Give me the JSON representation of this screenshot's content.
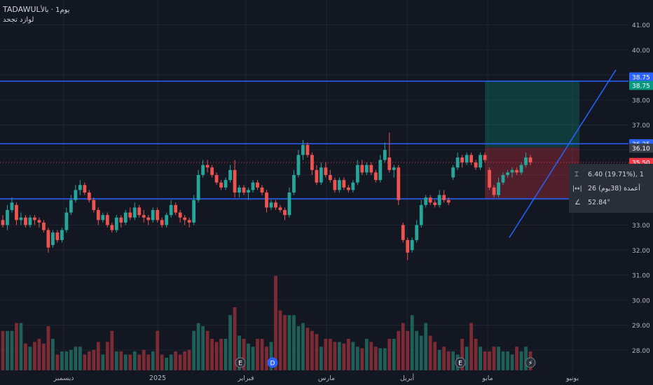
{
  "header": {
    "symbol": "TADAWUL",
    "title_ar": "يوم1 · بالأ",
    "subtitle": "لوازد تجحد"
  },
  "chart_data": {
    "type": "candlestick",
    "yaxis": {
      "range": [
        27.2,
        42.0
      ],
      "ticks": [
        "41.00",
        "40.00",
        "39.00",
        "38.00",
        "37.00",
        "36.00",
        "35.00",
        "34.00",
        "33.00",
        "32.00",
        "31.00",
        "30.00",
        "29.00",
        "28.00"
      ]
    },
    "xaxis_labels": [
      "ديسمبر",
      "2025",
      "فبراير",
      "مارس",
      "أبريل",
      "مايو",
      "يونيو"
    ],
    "lines": {
      "upper": 38.75,
      "middle": 36.25,
      "lower": 34.05
    },
    "price_tags": [
      {
        "value": 38.75,
        "label": "38.75",
        "color": "#2962ff"
      },
      {
        "value": 38.75,
        "label": "38.75",
        "color": "#089981"
      },
      {
        "value": 36.25,
        "label": "36.25",
        "color": "#2962ff"
      },
      {
        "value": 36.1,
        "label": "36.10",
        "color": "#3a3e48"
      },
      {
        "value": 35.5,
        "label": "35.50",
        "color": "#f23645"
      },
      {
        "value": 34.05,
        "label": "34.05",
        "color": "#2962ff"
      },
      {
        "value": 34.0,
        "label": "34.00",
        "color": "#f23645"
      }
    ],
    "last_price": 35.5,
    "position": {
      "entry": 36.1,
      "target": 38.75,
      "stop": 35.5
    },
    "trendline": {
      "from": 32.5,
      "to": 39.2
    },
    "measure": {
      "change": "6.40 (19.71%), 1",
      "bars": "26 أعمدة (38يوم)",
      "angle": "52.84°"
    },
    "markers": [
      "E",
      "D",
      "E",
      "⚡"
    ],
    "candles": [
      [
        33.2,
        33.4,
        32.9,
        33.0
      ],
      [
        33.0,
        33.8,
        32.8,
        33.6
      ],
      [
        33.6,
        34.1,
        33.5,
        33.9
      ],
      [
        33.8,
        33.9,
        33.0,
        33.2
      ],
      [
        33.2,
        33.5,
        33.0,
        33.3
      ],
      [
        33.3,
        33.4,
        32.9,
        33.0
      ],
      [
        33.0,
        33.4,
        32.9,
        33.3
      ],
      [
        33.3,
        33.4,
        33.0,
        33.2
      ],
      [
        33.2,
        33.3,
        32.9,
        33.1
      ],
      [
        33.1,
        33.2,
        32.7,
        32.8
      ],
      [
        32.8,
        32.9,
        31.9,
        32.1
      ],
      [
        32.2,
        32.8,
        32.1,
        32.7
      ],
      [
        32.7,
        32.8,
        32.3,
        32.4
      ],
      [
        32.4,
        32.9,
        32.3,
        32.8
      ],
      [
        32.8,
        33.7,
        32.7,
        33.5
      ],
      [
        33.5,
        34.2,
        33.4,
        34.0
      ],
      [
        34.0,
        34.6,
        33.9,
        34.4
      ],
      [
        34.4,
        34.8,
        34.2,
        34.6
      ],
      [
        34.6,
        34.7,
        34.2,
        34.3
      ],
      [
        34.3,
        34.4,
        33.9,
        34.0
      ],
      [
        34.0,
        34.1,
        33.5,
        33.6
      ],
      [
        33.6,
        33.7,
        33.0,
        33.2
      ],
      [
        33.2,
        33.5,
        33.1,
        33.4
      ],
      [
        33.4,
        33.5,
        32.9,
        33.0
      ],
      [
        33.0,
        33.1,
        32.7,
        32.8
      ],
      [
        32.8,
        33.4,
        32.7,
        33.3
      ],
      [
        33.3,
        33.4,
        32.9,
        33.1
      ],
      [
        33.1,
        33.6,
        33.0,
        33.5
      ],
      [
        33.5,
        33.7,
        33.2,
        33.3
      ],
      [
        33.3,
        33.9,
        33.2,
        33.7
      ],
      [
        33.7,
        33.8,
        33.3,
        33.4
      ],
      [
        33.4,
        33.6,
        33.1,
        33.3
      ],
      [
        33.3,
        33.4,
        33.0,
        33.2
      ],
      [
        33.2,
        33.7,
        33.1,
        33.6
      ],
      [
        33.6,
        33.7,
        33.1,
        33.2
      ],
      [
        33.2,
        33.3,
        32.9,
        33.0
      ],
      [
        33.0,
        33.5,
        32.9,
        33.4
      ],
      [
        33.4,
        34.0,
        33.3,
        33.8
      ],
      [
        33.8,
        33.9,
        33.4,
        33.5
      ],
      [
        33.5,
        33.6,
        33.1,
        33.3
      ],
      [
        33.3,
        33.4,
        33.0,
        33.2
      ],
      [
        33.2,
        33.3,
        32.9,
        33.1
      ],
      [
        33.1,
        34.2,
        33.0,
        34.0
      ],
      [
        34.0,
        35.2,
        33.9,
        35.0
      ],
      [
        35.0,
        35.6,
        34.9,
        35.4
      ],
      [
        35.4,
        35.6,
        35.1,
        35.3
      ],
      [
        35.3,
        35.4,
        34.9,
        35.0
      ],
      [
        35.0,
        35.1,
        34.6,
        34.7
      ],
      [
        34.7,
        34.8,
        34.4,
        34.5
      ],
      [
        34.5,
        34.9,
        34.4,
        34.8
      ],
      [
        34.8,
        35.4,
        34.7,
        35.2
      ],
      [
        35.2,
        35.6,
        34.1,
        34.3
      ],
      [
        34.3,
        34.6,
        34.1,
        34.5
      ],
      [
        34.5,
        34.6,
        34.2,
        34.3
      ],
      [
        34.3,
        34.5,
        34.0,
        34.4
      ],
      [
        34.4,
        34.8,
        34.3,
        34.7
      ],
      [
        34.7,
        34.8,
        34.4,
        34.5
      ],
      [
        34.5,
        34.6,
        34.2,
        34.3
      ],
      [
        34.3,
        34.4,
        33.5,
        33.7
      ],
      [
        33.7,
        34.0,
        33.6,
        33.9
      ],
      [
        33.9,
        34.0,
        33.6,
        33.7
      ],
      [
        33.7,
        33.8,
        33.5,
        33.6
      ],
      [
        33.6,
        33.7,
        33.2,
        33.4
      ],
      [
        33.4,
        34.5,
        33.3,
        34.3
      ],
      [
        34.3,
        35.2,
        34.2,
        35.0
      ],
      [
        35.0,
        36.0,
        34.9,
        35.8
      ],
      [
        35.8,
        36.4,
        35.6,
        36.2
      ],
      [
        36.2,
        36.3,
        35.7,
        35.8
      ],
      [
        35.8,
        35.9,
        35.0,
        35.2
      ],
      [
        35.2,
        35.4,
        34.6,
        34.7
      ],
      [
        34.7,
        35.5,
        34.6,
        35.3
      ],
      [
        35.3,
        35.5,
        34.9,
        35.0
      ],
      [
        35.0,
        35.2,
        34.7,
        34.8
      ],
      [
        34.8,
        34.9,
        34.3,
        34.4
      ],
      [
        34.4,
        34.9,
        34.3,
        34.8
      ],
      [
        34.8,
        34.9,
        34.4,
        34.5
      ],
      [
        34.5,
        34.6,
        34.3,
        34.4
      ],
      [
        34.4,
        34.8,
        34.3,
        34.7
      ],
      [
        34.7,
        35.6,
        34.6,
        35.4
      ],
      [
        35.4,
        35.6,
        35.0,
        35.1
      ],
      [
        35.1,
        35.5,
        35.0,
        35.4
      ],
      [
        35.4,
        35.5,
        35.0,
        35.1
      ],
      [
        35.1,
        35.2,
        34.7,
        34.8
      ],
      [
        34.8,
        35.8,
        34.7,
        35.6
      ],
      [
        35.6,
        36.3,
        35.5,
        36.0
      ],
      [
        35.7,
        36.7,
        35.1,
        35.2
      ],
      [
        35.2,
        35.4,
        34.9,
        35.3
      ],
      [
        35.3,
        35.4,
        33.8,
        34.0
      ],
      [
        33.0,
        33.1,
        32.3,
        32.4
      ],
      [
        32.4,
        32.5,
        31.6,
        31.9
      ],
      [
        32.0,
        32.5,
        31.9,
        32.4
      ],
      [
        32.4,
        33.2,
        32.3,
        33.0
      ],
      [
        33.0,
        34.0,
        32.9,
        33.8
      ],
      [
        33.8,
        34.2,
        33.7,
        34.1
      ],
      [
        34.1,
        34.2,
        33.8,
        33.9
      ],
      [
        33.9,
        34.0,
        33.7,
        33.8
      ],
      [
        33.8,
        34.4,
        33.7,
        34.2
      ],
      [
        34.2,
        34.4,
        33.9,
        34.0
      ],
      [
        34.0,
        34.1,
        33.8,
        33.9
      ],
      [
        34.9,
        35.4,
        34.8,
        35.3
      ],
      [
        35.3,
        35.9,
        35.2,
        35.7
      ],
      [
        35.7,
        35.8,
        35.3,
        35.5
      ],
      [
        35.5,
        35.9,
        35.4,
        35.8
      ],
      [
        35.8,
        35.9,
        35.4,
        35.5
      ],
      [
        35.5,
        35.6,
        35.2,
        35.3
      ],
      [
        35.3,
        35.9,
        35.2,
        35.8
      ],
      [
        35.8,
        35.9,
        35.5,
        35.6
      ],
      [
        35.2,
        35.3,
        34.4,
        34.5
      ],
      [
        34.5,
        34.6,
        34.1,
        34.2
      ],
      [
        34.2,
        34.9,
        34.1,
        34.7
      ],
      [
        34.7,
        35.1,
        34.6,
        35.0
      ],
      [
        35.0,
        35.2,
        34.9,
        35.1
      ],
      [
        35.1,
        35.3,
        34.9,
        35.2
      ],
      [
        35.2,
        35.3,
        35.0,
        35.1
      ],
      [
        35.1,
        35.5,
        35.0,
        35.4
      ],
      [
        35.4,
        35.9,
        35.3,
        35.7
      ],
      [
        35.7,
        35.8,
        35.4,
        35.5
      ]
    ],
    "volumes": [
      0.25,
      0.25,
      0.25,
      0.3,
      0.3,
      0.17,
      0.15,
      0.18,
      0.2,
      0.17,
      0.28,
      0.2,
      0.1,
      0.12,
      0.12,
      0.13,
      0.15,
      0.15,
      0.1,
      0.12,
      0.13,
      0.18,
      0.1,
      0.18,
      0.25,
      0.12,
      0.12,
      0.1,
      0.1,
      0.12,
      0.1,
      0.13,
      0.1,
      0.12,
      0.25,
      0.1,
      0.08,
      0.1,
      0.12,
      0.1,
      0.12,
      0.13,
      0.25,
      0.3,
      0.28,
      0.25,
      0.2,
      0.18,
      0.2,
      0.2,
      0.35,
      0.4,
      0.22,
      0.2,
      0.17,
      0.15,
      0.2,
      0.2,
      0.15,
      0.18,
      0.6,
      0.38,
      0.35,
      0.35,
      0.35,
      0.28,
      0.3,
      0.27,
      0.25,
      0.23,
      0.15,
      0.2,
      0.2,
      0.18,
      0.18,
      0.17,
      0.2,
      0.18,
      0.15,
      0.14,
      0.2,
      0.18,
      0.15,
      0.14,
      0.14,
      0.2,
      0.2,
      0.25,
      0.3,
      0.25,
      0.35,
      0.25,
      0.22,
      0.3,
      0.22,
      0.18,
      0.13,
      0.15,
      0.12,
      0.12,
      0.1,
      0.2,
      0.15,
      0.3,
      0.2,
      0.15,
      0.12,
      0.12,
      0.15,
      0.15,
      0.12,
      0.12,
      0.1,
      0.15,
      0.12,
      0.15,
      0.12
    ]
  }
}
